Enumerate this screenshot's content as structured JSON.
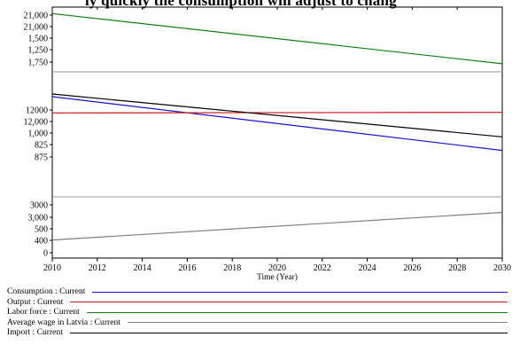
{
  "page_title": "ly quickly the consumption will adjust to chang",
  "chart_data": {
    "type": "line",
    "xlabel": "Time (Year)",
    "xlim": [
      2010,
      2030
    ],
    "x_ticks": [
      2010,
      2012,
      2014,
      2016,
      2018,
      2020,
      2022,
      2024,
      2026,
      2028,
      2030
    ],
    "y_tick_labels": {
      "panel_1": [
        "21,000",
        "21,000",
        "1,500",
        "1,250",
        "1,750"
      ],
      "panel_2": [
        "12000",
        "12,000",
        "1,000",
        "825",
        "875"
      ],
      "panel_3": [
        "3000",
        "3,000",
        "500",
        "400",
        "0"
      ]
    },
    "grid": false,
    "legend_placement": "bottom",
    "x": [
      2010,
      2030
    ],
    "series": [
      {
        "name": "Consumption : Current",
        "color": "#1414cc",
        "panel": 2,
        "values": [
          1161,
          860
        ]
      },
      {
        "name": "Output : Current",
        "color": "#cc1414",
        "panel": 2,
        "values": [
          1070,
          1073
        ]
      },
      {
        "name": "Labor force : Current",
        "color": "#108010",
        "panel": 1,
        "values": [
          2120,
          1500
        ]
      },
      {
        "name": "Average wage in Latvia : Current",
        "color": "#808080",
        "panel": 3,
        "values": [
          414,
          1045
        ]
      },
      {
        "name": "Import : Current",
        "color": "#000000",
        "panel": 2,
        "values": [
          1176,
          936
        ]
      }
    ]
  }
}
